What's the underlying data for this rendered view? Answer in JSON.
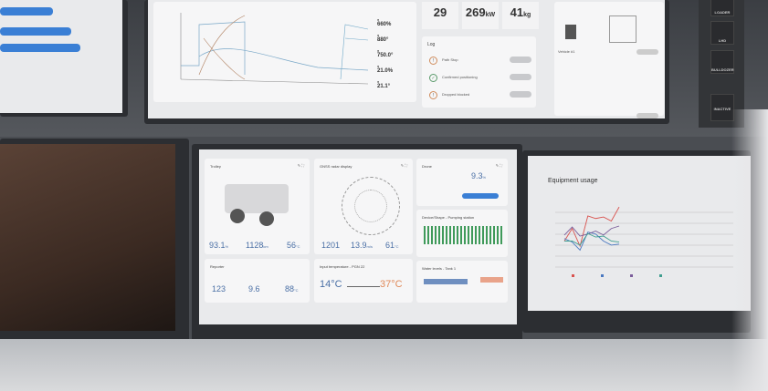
{
  "top_left_monitor": {
    "bars_color": "#3a7fd5"
  },
  "top_center_monitor": {
    "chart_legend": [
      {
        "value": "660",
        "unit": "%",
        "color": "#c9c94a"
      },
      {
        "value": "880",
        "unit": "°",
        "color": "#6fa8c8"
      },
      {
        "value": "750.0",
        "unit": "°",
        "color": "#888888"
      },
      {
        "value": "21.0",
        "unit": "%",
        "color": "#6a8f6a"
      },
      {
        "value": "21.1",
        "unit": "°",
        "color": "#aaaaaa"
      }
    ],
    "stats": [
      {
        "value": "29",
        "unit": ""
      },
      {
        "value": "269",
        "unit": "kW"
      },
      {
        "value": "41",
        "unit": "kg"
      }
    ],
    "log": {
      "title": "Log",
      "items": [
        {
          "label": "Path Stop",
          "status": "warning"
        },
        {
          "label": "Confirmed positioning",
          "status": "ok"
        },
        {
          "label": "Dropped blocked",
          "status": "warning"
        }
      ]
    }
  },
  "top_right_panel": {
    "vehicle_label": "Vehicle #1",
    "buttons": [
      "LOADER",
      "LHD",
      "BULLDOZER",
      "INACTIVE"
    ]
  },
  "dashboard": {
    "trolley": {
      "title": "Trolley",
      "metrics": [
        {
          "value": "93.1",
          "unit": "%"
        },
        {
          "value": "1128",
          "unit": "km"
        },
        {
          "value": "56",
          "unit": "°C"
        }
      ]
    },
    "radar": {
      "title": "GNSS radar display",
      "metrics": [
        {
          "value": "1201",
          "unit": ""
        },
        {
          "value": "13.9",
          "unit": "m/s"
        },
        {
          "value": "61",
          "unit": "°C"
        }
      ]
    },
    "drone": {
      "title": "Drone",
      "value": "9.3",
      "unit": "%"
    },
    "pumping": {
      "title": "Device/Shape - Pumping station"
    },
    "reporter": {
      "title": "Reporter",
      "metrics": [
        {
          "value": "123",
          "unit": ""
        },
        {
          "value": "9.6",
          "unit": ""
        },
        {
          "value": "88",
          "unit": "°C"
        }
      ]
    },
    "input_temp": {
      "title": "Input temperature - PGN 22",
      "min": "14°C",
      "max": "37°C"
    },
    "water": {
      "title": "Water levels - Tank 1"
    }
  },
  "chart_data": {
    "type": "line",
    "title": "Equipment usage",
    "xlabel": "",
    "ylabel": "",
    "ylim": [
      0,
      100
    ],
    "grid": true,
    "legend_placement": "bottom",
    "x": [
      0,
      1,
      2,
      3,
      4,
      5,
      6,
      7
    ],
    "series": [
      {
        "color": "#d9534f",
        "values": [
          30,
          55,
          20,
          80,
          75,
          78,
          70,
          98
        ]
      },
      {
        "color": "#4a78c0",
        "values": [
          35,
          28,
          12,
          48,
          44,
          30,
          22,
          24
        ]
      },
      {
        "color": "#7a5c9a",
        "values": [
          42,
          58,
          40,
          44,
          50,
          42,
          55,
          60
        ]
      },
      {
        "color": "#3f9e8f",
        "values": [
          30,
          30,
          22,
          45,
          38,
          40,
          30,
          28
        ]
      }
    ]
  }
}
